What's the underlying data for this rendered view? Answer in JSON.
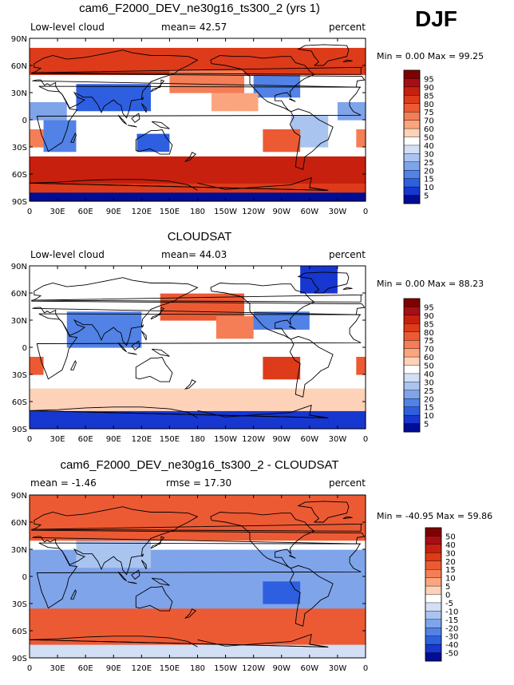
{
  "season": "DJF",
  "chart_data": [
    {
      "type": "heatmap",
      "title": "cam6_F2000_DEV_ne30g16_ts300_2 (yrs 1)",
      "left_label": "Low-level cloud",
      "center_label": "mean=  42.57",
      "right_label": "percent",
      "minmax": "Min =    0.00 Max =   99.25",
      "mean": 42.57,
      "min": 0.0,
      "max": 99.25,
      "ylabels": [
        "90N",
        "60N",
        "30N",
        "0",
        "30S",
        "60S",
        "90S"
      ],
      "xlabels": [
        "0",
        "30E",
        "60E",
        "90E",
        "120E",
        "150E",
        "180",
        "150W",
        "120W",
        "90W",
        "60W",
        "30W",
        "0"
      ],
      "colorbar_labels": [
        "95",
        "90",
        "85",
        "80",
        "75",
        "70",
        "60",
        "50",
        "40",
        "30",
        "25",
        "20",
        "15",
        "10",
        "5"
      ],
      "colorbar_colors": [
        "#800000",
        "#a50f15",
        "#c8200e",
        "#dd3b1a",
        "#ec5a34",
        "#f57e56",
        "#fba57f",
        "#fdd2b8",
        "#ffffff",
        "#d2dff5",
        "#aac4f0",
        "#7fa4ea",
        "#5282e6",
        "#2e5fe0",
        "#1737d0",
        "#000d94"
      ]
    },
    {
      "type": "heatmap",
      "title": "CLOUDSAT",
      "left_label": "Low-level cloud",
      "center_label": "mean=  44.03",
      "right_label": "percent",
      "minmax": "Min =    0.00 Max =   88.23",
      "mean": 44.03,
      "min": 0.0,
      "max": 88.23,
      "ylabels": [
        "90N",
        "60N",
        "30N",
        "0",
        "30S",
        "60S",
        "90S"
      ],
      "xlabels": [
        "0",
        "30E",
        "60E",
        "90E",
        "120E",
        "150E",
        "180",
        "150W",
        "120W",
        "90W",
        "60W",
        "30W",
        "0"
      ],
      "colorbar_labels": [
        "95",
        "90",
        "85",
        "80",
        "75",
        "70",
        "60",
        "50",
        "40",
        "30",
        "25",
        "20",
        "15",
        "10",
        "5"
      ],
      "colorbar_colors": [
        "#800000",
        "#a50f15",
        "#c8200e",
        "#dd3b1a",
        "#ec5a34",
        "#f57e56",
        "#fba57f",
        "#fdd2b8",
        "#ffffff",
        "#d2dff5",
        "#aac4f0",
        "#7fa4ea",
        "#5282e6",
        "#2e5fe0",
        "#1737d0",
        "#000d94"
      ]
    },
    {
      "type": "heatmap",
      "title": "cam6_F2000_DEV_ne30g16_ts300_2 - CLOUDSAT",
      "left_label": "mean =  -1.46",
      "center_label": "rmse =  17.30",
      "right_label": "percent",
      "minmax": "Min = -40.95 Max =  59.86",
      "mean": -1.46,
      "rmse": 17.3,
      "min": -40.95,
      "max": 59.86,
      "ylabels": [
        "90N",
        "60N",
        "30N",
        "0",
        "30S",
        "60S",
        "90S"
      ],
      "xlabels": [
        "0",
        "30E",
        "60E",
        "90E",
        "120E",
        "150E",
        "180",
        "150W",
        "120W",
        "90W",
        "60W",
        "30W",
        "0"
      ],
      "colorbar_labels": [
        "50",
        "40",
        "30",
        "20",
        "15",
        "10",
        "5",
        "0",
        "-5",
        "-10",
        "-15",
        "-20",
        "-30",
        "-40",
        "-50"
      ],
      "colorbar_colors": [
        "#800000",
        "#a50f15",
        "#c8200e",
        "#dd3b1a",
        "#ec5a34",
        "#f57e56",
        "#fba57f",
        "#fdd2b8",
        "#ffffff",
        "#d2dff5",
        "#aac4f0",
        "#7fa4ea",
        "#5282e6",
        "#2e5fe0",
        "#1737d0",
        "#000d94"
      ]
    }
  ]
}
